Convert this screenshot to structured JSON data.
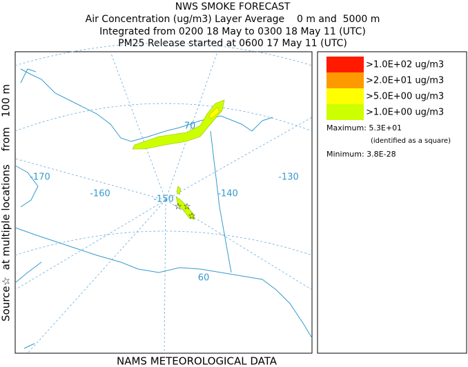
{
  "header": {
    "title": "NWS SMOKE FORECAST",
    "lines": [
      "Air Concentration (ug/m3) Layer Average    0 m and  5000 m",
      "Integrated from 0200 18 May to 0300 18 May 11 (UTC)",
      "PM25 Release started at 0600 17 May 11 (UTC)"
    ]
  },
  "side_label": "Source☆  at multiple locations    from   100 m",
  "footer": "NAMS METEOROLOGICAL DATA",
  "map": {
    "labels": [
      "70",
      "-170",
      "-160",
      "-150",
      "-140",
      "-130",
      "60"
    ]
  },
  "legend": {
    "items": [
      {
        "label": ">1.0E+02 ug/m3",
        "color": "#ff1a00"
      },
      {
        "label": ">2.0E+01 ug/m3",
        "color": "#ff9900"
      },
      {
        "label": ">5.0E+00 ug/m3",
        "color": "#ffff00"
      },
      {
        "label": ">1.0E+00 ug/m3",
        "color": "#ccff00"
      }
    ],
    "maximum": "Maximum: 5.3E+01",
    "note": "(identified as a square)",
    "minimum": "Minimum: 3.8E-28"
  }
}
